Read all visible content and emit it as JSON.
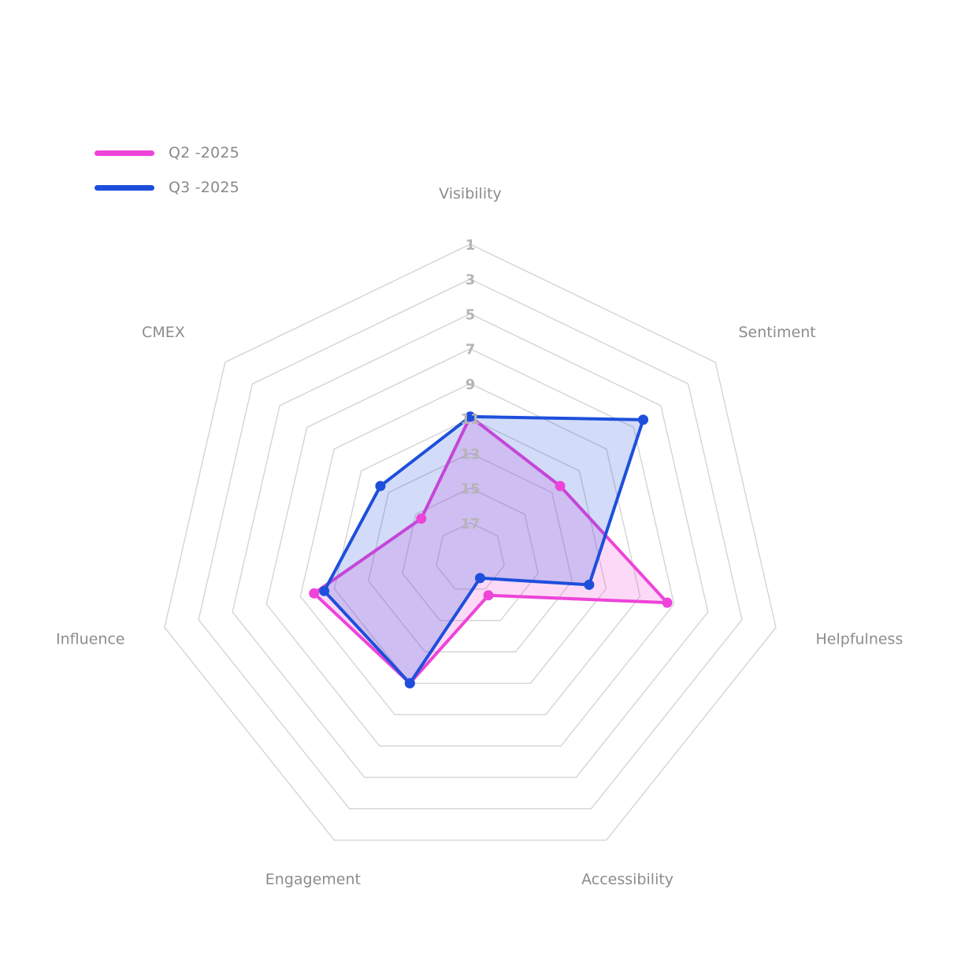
{
  "chart_data": {
    "type": "radar",
    "axes": [
      "Visibility",
      "Sentiment",
      "Helpfulness",
      "Accessibility",
      "Engagement",
      "Influence",
      "CMEX"
    ],
    "scale": {
      "min": 1,
      "max": 19,
      "reversed": true,
      "ticks": [
        "1",
        "3",
        "5",
        "7",
        "9",
        "11",
        "13",
        "15",
        "17"
      ]
    },
    "series": [
      {
        "name": "Q2 -2025",
        "color": "#ee44d9",
        "values": [
          10.9,
          12.4,
          7.4,
          16.6,
          11.0,
          9.8,
          15.4
        ]
      },
      {
        "name": "Q3 -2025",
        "color": "#1d4fdc",
        "values": [
          10.9,
          6.3,
          12.0,
          17.7,
          11.0,
          10.4,
          12.4
        ]
      }
    ],
    "legend_position": "top-left",
    "grid": true
  }
}
